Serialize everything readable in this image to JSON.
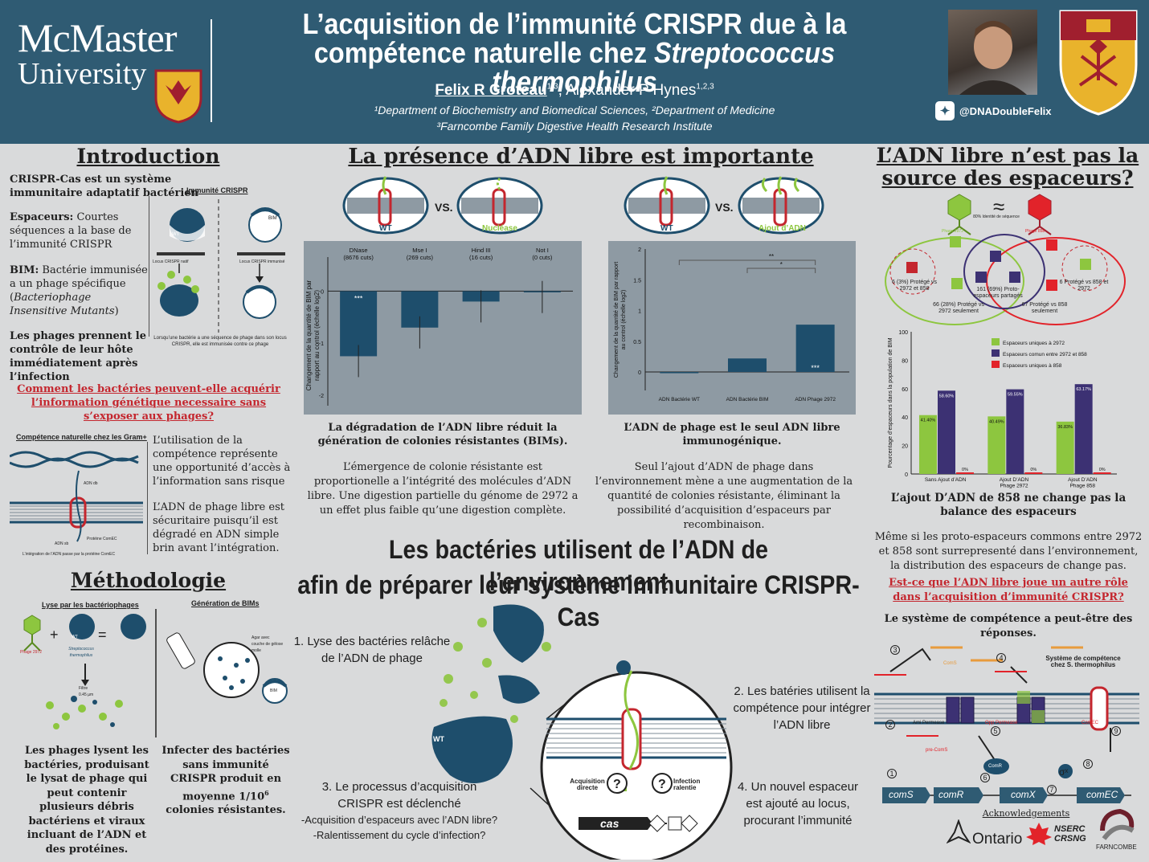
{
  "header": {
    "logo_l1": "McMaster",
    "logo_l2": "University",
    "title_l1": "L’acquisition de l’immunité CRISPR due à la",
    "title_l2a": "compétence naturelle chez ",
    "title_l2b": "Streptococcus thermophilus",
    "author1": "Felix R Croteau",
    "author1_sup": "1,3",
    "author2": ", Alexander P Hynes",
    "author2_sup": "1,2,3",
    "affil1": "¹Department of Biochemistry and Biomedical Sciences, ²Department of Medicine",
    "affil2": "³Farncombe Family Digestive Health Research Institute",
    "twitter": "@DNADoubleFelix",
    "colors": {
      "banner": "#2f5b73",
      "crest_gold": "#e9b32c",
      "crest_red": "#a01f2e"
    }
  },
  "intro": {
    "heading": "Introduction",
    "p1": "CRISPR-Cas est un système immunitaire adaptatif bactérien",
    "p2_bold": "Espaceurs:",
    "p2": " Courtes séquences a la base de l’immunité CRISPR",
    "p3_bold": "BIM:",
    "p3a": " Bactérie immunisée a un phage spécifique (",
    "p3_ital": "Bacteriophage Insensitive Mutants",
    "p3b": ")",
    "p4": "Les phages prennent le contrôle de leur hôte immédiatement après l’infection",
    "fig_title": "Immunité CRISPR",
    "fig_wt": "WT",
    "fig_bim": "BIM",
    "fig_locus1": "Locus CRISPR natif",
    "fig_locus2": "Locus CRISPR immunisé",
    "fig_caption": "Lorsqu’une bactérie a une séquence de phage dans son locus CRISPR, elle est immunisée contre ce phage",
    "question": "Comment les bactéries peuvent-elle acquérir l’information génétique necessaire sans s’exposer aux phages?",
    "comp_title": "Compétence naturelle chez les Gram+",
    "comp_adn": "ADN db",
    "comp_adns": "ADN sb",
    "comp_prot": "Protéine ComEC",
    "comp_caption": "L’intégration de l’ADN passe par la protéine ComEC",
    "comp_p1": "L’utilisation de la compétence représente une opportunité d’accès à l’information sans risque",
    "comp_p2": "L’ADN de phage libre est sécuritaire puisqu’il est dégradé en ADN simple brin avant l’intégration."
  },
  "methods": {
    "heading": "Méthodologie",
    "lyse_title": "Lyse par les bactériophages",
    "gen_title": "Génération de BIMs",
    "phage": "Phage 2972",
    "strep": "Streptococcus thermophilus",
    "filtre": "Filtre 0.45 µm",
    "agar": "Agar avec couche de gélose molle",
    "wt": "WT",
    "bim": "BIM",
    "cap1": "Les phages lysent les bactéries, produisant le lysat de phage qui peut contenir plusieurs débris bactériens et viraux incluant de l’ADN et des protéines.",
    "cap2a": "Infecter des bactéries sans immunité CRISPR produit en moyenne 1/10",
    "cap2_sup": "6",
    "cap2b": " colonies résistantes."
  },
  "center": {
    "heading": "La présence d’ADN libre est importante",
    "vs": "VS.",
    "mem_wt": "WT",
    "mem_nuclease": "Nucléase",
    "mem_ajout": "Ajout d’ADN",
    "chart1_title": "La dégradation de l’ADN libre réduit la génération de colonies résistantes (BIMs).",
    "chart1_text": "L’émergence de colonie résistante est proportionelle a l’intégrité des molécules d’ADN libre. Une digestion partielle du génome de 2972 a un effet plus faible qu’une digestion complète.",
    "chart2_title": "L’ADN de phage est le seul ADN libre immunogénique.",
    "chart2_text": "Seul l’ajout d’ADN de phage dans l’environnement mène a une augmentation de la quantité de colonies résistante, éliminant la possibilité d’acquisition d’espaceurs par recombinaison.",
    "big1": "Les bactéries utilisent de l’ADN de l’environnement",
    "big2": "afin de préparer leur système immunitaire CRISPR-Cas",
    "step1": "1. Lyse des bactéries relâche de l’ADN de phage",
    "step2": "2. Les batéries utilisent la compétence pour intégrer l’ADN libre",
    "step3a": "3. Le processus d’acquisition CRISPR est déclenché",
    "step3b": "-Acquisition d’espaceurs avec l’ADN libre?",
    "step3c": "-Ralentissement du cycle d’infection?",
    "step4": "4. Un nouvel espaceur est ajouté au locus, procurant l’immunité",
    "acq": "Acquisition directe",
    "inf": "Infection ralentie",
    "cas": "cas",
    "wt": "WT"
  },
  "chart_data": [
    {
      "type": "bar",
      "categories": [
        "DNase (8676 cuts)",
        "Mse I (269 cuts)",
        "Hind III (16 cuts)",
        "Not I (0 cuts)"
      ],
      "values": [
        -1.25,
        -0.7,
        -0.2,
        -0.02
      ],
      "ylabel": "Changement de la quantité de BIM par rapport au control (échelle log2)",
      "ylim": [
        -2.2,
        0.5
      ],
      "yticks": [
        0,
        -1,
        -2
      ],
      "significance": [
        "***",
        "",
        "",
        ""
      ]
    },
    {
      "type": "bar",
      "categories": [
        "ADN Bactérie WT",
        "ADN Bactérie BIM",
        "ADN Phage 2972"
      ],
      "values": [
        0.0,
        0.22,
        0.77
      ],
      "ylabel": "Changement de la quantité de BIM par rapport au control (échelle log2)",
      "ylim": [
        -0.3,
        2
      ],
      "yticks": [
        0,
        0.5,
        1,
        1.5,
        2
      ],
      "significance": [
        "",
        "",
        "***"
      ],
      "brackets": [
        "**",
        "*"
      ]
    },
    {
      "type": "bar",
      "categories": [
        "Sans Ajout d’ADN",
        "Ajout D’ADN Phage 2972",
        "Ajout D’ADN Phage 858"
      ],
      "series": [
        {
          "name": "Espaceurs uniques à 2972",
          "values": [
            41.4,
            40.49,
            36.83
          ],
          "color": "#8dc63f"
        },
        {
          "name": "Espaceurs comun entre 2972 et 858",
          "values": [
            58.6,
            59.55,
            63.17
          ],
          "color": "#3c3173"
        },
        {
          "name": "Espaceurs uniques à 858",
          "values": [
            0,
            0,
            0
          ],
          "color": "#e2232a"
        }
      ],
      "labels": [
        [
          "41.40%",
          "58.60%",
          "0%"
        ],
        [
          "40.49%",
          "59.55%",
          "0%"
        ],
        [
          "36.83%",
          "63.17%",
          "0%"
        ]
      ],
      "ylabel": "Pourcentage d’espaceurs dans la population de BIM",
      "ylim": [
        0,
        100
      ],
      "yticks": [
        0,
        20,
        40,
        60,
        80,
        100
      ]
    }
  ],
  "right": {
    "heading1": "L’ADN libre n’est pas la",
    "heading2": "source des espaceurs?",
    "approx": "≈",
    "ident": "80% Identité de séquence",
    "phage2972": "Phage 2972",
    "phage858": "Phage 858",
    "v1": "6 (3%) Protégé vs 2972 et 858",
    "v2": "161 (69%) Proto-espaceurs partagés",
    "v3": "6 Protégé vs 858 et 2972",
    "v4": "66 (28%) Protégé vs 2972 seulement",
    "v5": "67 Protégé vs 858 seulement",
    "chart_title": "L’ajout D’ADN de 858 ne change pas la balance des espaceurs",
    "p1": "Même si les proto-espaceurs commons entre 2972 et 858 sont surrepresenté dans l’environnement, la distribution des espaceurs de change pas.",
    "question": "Est-ce que l’ADN libre joue un autre rôle dans l’acquisition d’immunité CRISPR?",
    "p2": "Le système de compétence a peut-être des réponses.",
    "sys_title": "Système de compétence chez S. thermophilus",
    "genes": [
      "comS",
      "comR",
      "comX",
      "comEC"
    ],
    "ami": "Ami Permease",
    "opp": "Opp Permease",
    "comec": "ComEC",
    "comr": "ComR",
    "precoms": "pre-ComS",
    "coms": "ComS",
    "sigma": "σˣ",
    "nums": [
      "1",
      "2",
      "3",
      "4",
      "5",
      "6",
      "7",
      "8",
      "9"
    ],
    "ack": "Acknowledgements",
    "ontario": "Ontario",
    "nserc1": "NSERC",
    "nserc2": "CRSNG",
    "farn": "FARNCOMBE"
  }
}
